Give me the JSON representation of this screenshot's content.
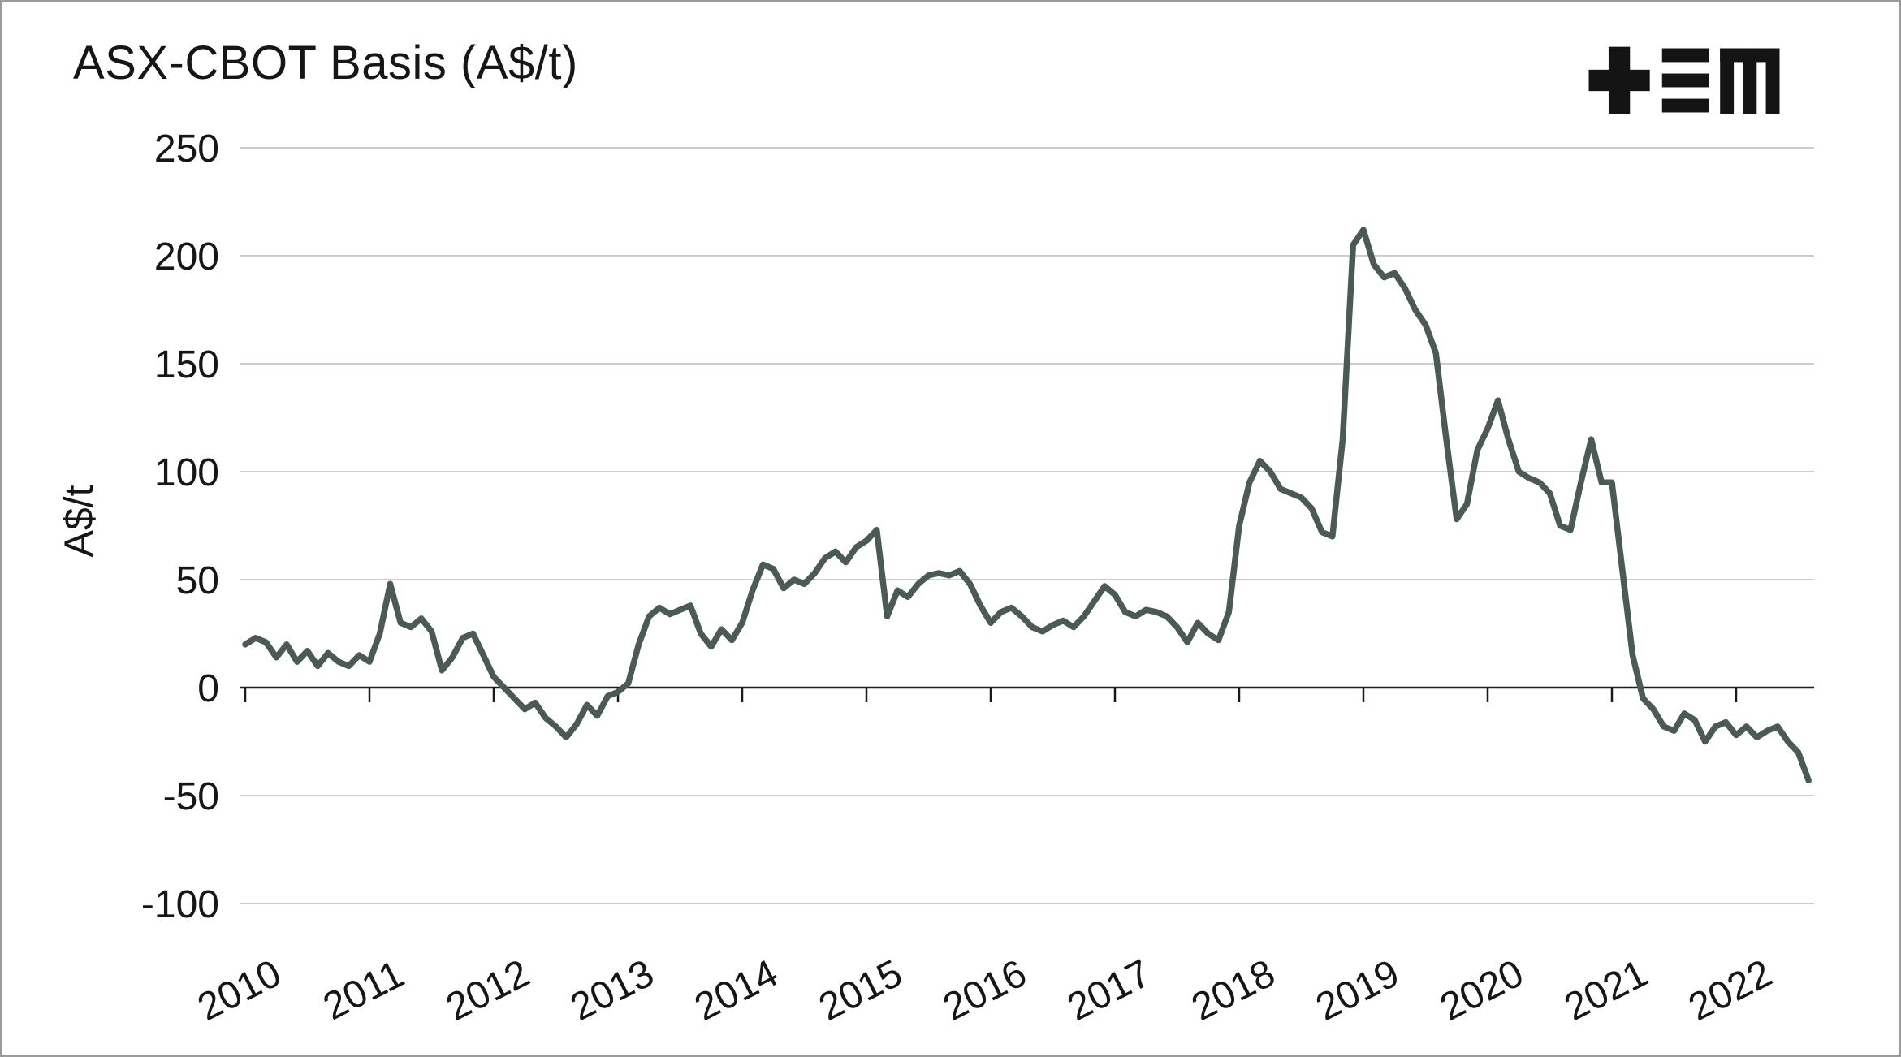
{
  "frame": {
    "background": "#ffffff",
    "border_color": "#9a9a9a"
  },
  "title": "ASX-CBOT Basis (A$/t)",
  "logo": {
    "name": "TEM logo",
    "color": "#141414"
  },
  "chart_data": {
    "type": "line",
    "title": "ASX-CBOT Basis (A$/t)",
    "xlabel": "",
    "ylabel": "A$/t",
    "x_tick_labels": [
      "2010",
      "2011",
      "2012",
      "2013",
      "2014",
      "2015",
      "2016",
      "2017",
      "2018",
      "2019",
      "2020",
      "2021",
      "2022"
    ],
    "yticks": [
      250,
      200,
      150,
      100,
      50,
      0,
      -50,
      -100
    ],
    "ylim": [
      -110,
      260
    ],
    "x_start_year": 2010,
    "points_per_year": 12,
    "grid": "horizontal",
    "legend_position": "none",
    "line_color": "#4b5a55",
    "grid_color": "#cccccc",
    "axis_color": "#1a1a1a",
    "series": [
      {
        "name": "ASX-CBOT basis (A$/t), monthly, Jan 2010 - Aug 2022",
        "monthly_values": [
          20,
          23,
          21,
          14,
          20,
          12,
          17,
          10,
          16,
          12,
          10,
          15,
          12,
          25,
          48,
          30,
          28,
          32,
          26,
          8,
          14,
          23,
          25,
          15,
          5,
          0,
          -5,
          -10,
          -7,
          -14,
          -18,
          -23,
          -17,
          -8,
          -13,
          -4,
          -2,
          2,
          20,
          33,
          37,
          34,
          36,
          38,
          25,
          19,
          27,
          22,
          30,
          45,
          57,
          55,
          46,
          50,
          48,
          53,
          60,
          63,
          58,
          65,
          68,
          73,
          33,
          45,
          42,
          48,
          52,
          53,
          52,
          54,
          48,
          38,
          30,
          35,
          37,
          33,
          28,
          26,
          29,
          31,
          28,
          33,
          40,
          47,
          43,
          35,
          33,
          36,
          35,
          33,
          28,
          21,
          30,
          25,
          22,
          35,
          75,
          95,
          105,
          100,
          92,
          90,
          88,
          83,
          72,
          70,
          115,
          205,
          212,
          196,
          190,
          192,
          185,
          175,
          168,
          155,
          115,
          78,
          85,
          110,
          120,
          133,
          115,
          100,
          97,
          95,
          90,
          75,
          73,
          95,
          115,
          95,
          95,
          55,
          15,
          -5,
          -10,
          -18,
          -20,
          -12,
          -15,
          -25,
          -18,
          -16,
          -22,
          -18,
          -23,
          -20,
          -18,
          -25,
          -30,
          -43
        ]
      }
    ]
  }
}
